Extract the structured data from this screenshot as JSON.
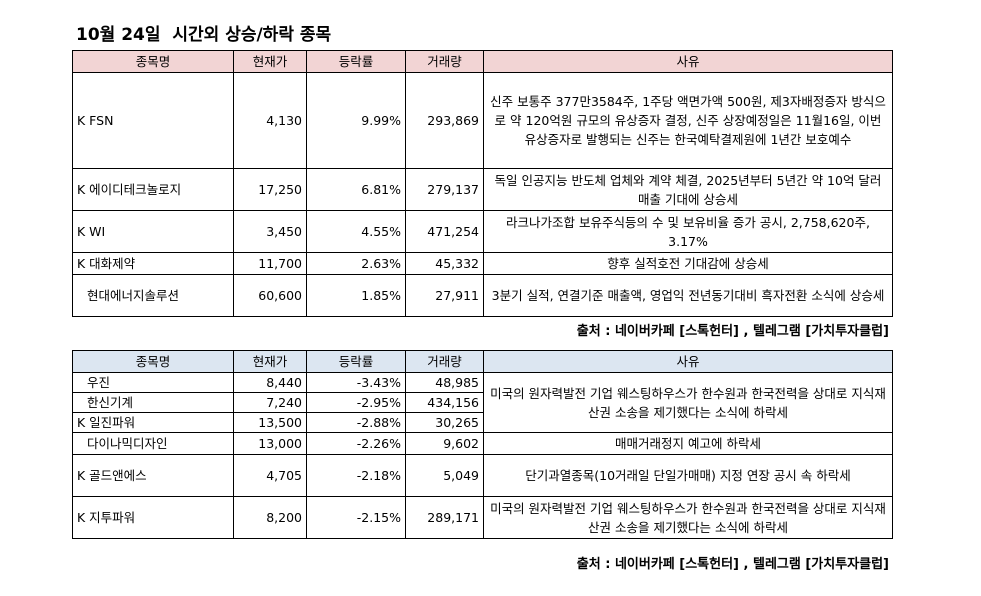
{
  "title": "10월 24일  시간외 상승/하락 종목",
  "rise_table": {
    "headers": [
      "종목명",
      "현재가",
      "등락률",
      "거래량",
      "사유"
    ],
    "rows": [
      {
        "name": "K FSN",
        "price": "4,130",
        "rate": "9.99%",
        "volume": "293,869",
        "reason": "신주 보통주 377만3584주, 1주당 액면가액 500원, 제3자배정증자 방식으로 약 120억원 규모의 유상증자 결정, 신주 상장예정일은 11월16일, 이번 유상증자로 발행되는 신주는 한국예탁결제원에 1년간 보호예수"
      },
      {
        "name": "K 에이디테크놀로지",
        "price": "17,250",
        "rate": "6.81%",
        "volume": "279,137",
        "reason": "독일 인공지능 반도체 업체와 계약 체결, 2025년부터 5년간 약 10억 달러 매출 기대에 상승세"
      },
      {
        "name": "K WI",
        "price": "3,450",
        "rate": "4.55%",
        "volume": "471,254",
        "reason": "라크나가조합 보유주식등의 수 및 보유비율 증가 공시, 2,758,620주, 3.17%"
      },
      {
        "name": "K 대화제약",
        "price": "11,700",
        "rate": "2.63%",
        "volume": "45,332",
        "reason": "향후 실적호전 기대감에 상승세"
      },
      {
        "name": "현대에너지솔루션",
        "price": "60,600",
        "rate": "1.85%",
        "volume": "27,911",
        "reason": "3분기 실적, 연결기준 매출액, 영업익 전년동기대비 흑자전환 소식에 상승세"
      }
    ],
    "source": "출처 : 네이버카페 [스톡헌터] , 텔레그램 [가치투자클럽]"
  },
  "fall_table": {
    "headers": [
      "종목명",
      "현재가",
      "등락률",
      "거래량",
      "사유"
    ],
    "rows": [
      {
        "name": "우진",
        "price": "8,440",
        "rate": "-3.43%",
        "volume": "48,985"
      },
      {
        "name": "한신기계",
        "price": "7,240",
        "rate": "-2.95%",
        "volume": "434,156"
      },
      {
        "name": "K 일진파워",
        "price": "13,500",
        "rate": "-2.88%",
        "volume": "30,265"
      },
      {
        "name": "다이나믹디자인",
        "price": "13,000",
        "rate": "-2.26%",
        "volume": "9,602"
      },
      {
        "name": "K 골드앤에스",
        "price": "4,705",
        "rate": "-2.18%",
        "volume": "5,049"
      },
      {
        "name": "K 지투파워",
        "price": "8,200",
        "rate": "-2.15%",
        "volume": "289,171"
      }
    ],
    "reasons": {
      "group_nuclear": "미국의 원자력발전 기업 웨스팅하우스가 한수원과 한국전력을 상대로 지식재산권 소송을 제기했다는 소식에 하락세",
      "dynamic": "매매거래정지 예고에 하락세",
      "gold": "단기과열종목(10거래일 단일가매매) 지정 연장 공시 속 하락세",
      "g2": "미국의 원자력발전 기업 웨스팅하우스가 한수원과 한국전력을 상대로 지식재산권 소송을 제기했다는 소식에 하락세"
    },
    "source": "출처 : 네이버카페 [스톡헌터] , 텔레그램 [가치투자클럽]"
  }
}
